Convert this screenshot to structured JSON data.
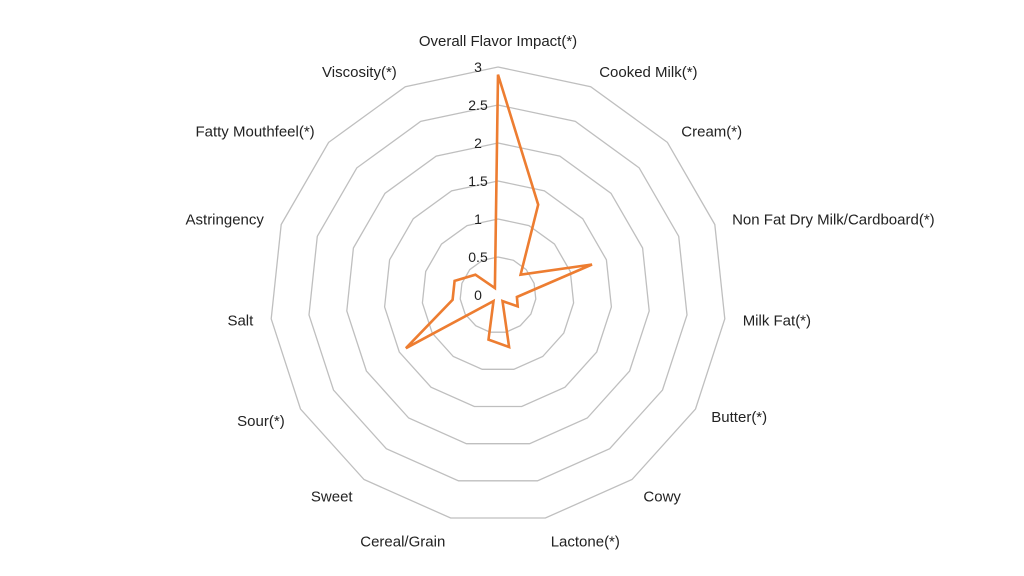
{
  "chart_data": {
    "type": "radar",
    "title": "",
    "axes": [
      "Overall Flavor Impact(*)",
      "Cooked Milk(*)",
      "Cream(*)",
      "Non Fat Dry Milk/Cardboard(*)",
      "Milk Fat(*)",
      "Butter(*)",
      "Cowy",
      "Lactone(*)",
      "Cereal/Grain",
      "Sweet",
      "Sour(*)",
      "Salt",
      "Astringency",
      "Fatty Mouthfeel(*)",
      "Viscosity(*)"
    ],
    "ticks": [
      "0",
      "0.5",
      "1",
      "1.5",
      "2",
      "2.5",
      "3"
    ],
    "range": [
      0,
      3
    ],
    "grid": true,
    "series": [
      {
        "values": [
          2.9,
          1.3,
          0.4,
          1.3,
          0.25,
          0.3,
          0.1,
          0.7,
          0.6,
          0.1,
          1.4,
          0.6,
          0.6,
          0.4,
          0.1
        ],
        "color": "#ED7D31"
      }
    ],
    "grid_color": "#BFBFBF"
  }
}
